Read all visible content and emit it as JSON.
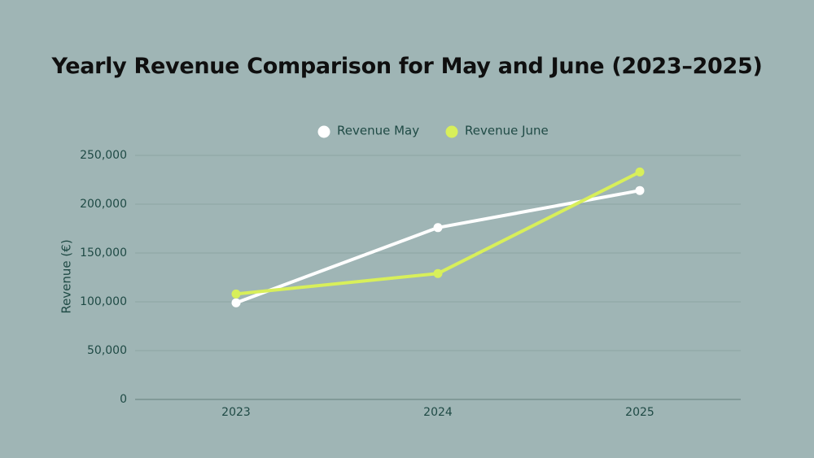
{
  "chart_data": {
    "type": "line",
    "title": "Yearly Revenue Comparison for May and June (2023–2025)",
    "xlabel": "",
    "ylabel": "Revenue (€)",
    "categories": [
      "2023",
      "2024",
      "2025"
    ],
    "ylim": [
      0,
      250000
    ],
    "yticks": [
      "0",
      "50,000",
      "100,000",
      "150,000",
      "200,000",
      "250,000"
    ],
    "ytick_values": [
      0,
      50000,
      100000,
      150000,
      200000,
      250000
    ],
    "grid": true,
    "legend_position": "top-center",
    "series": [
      {
        "name": "Revenue May",
        "color": "#ffffff",
        "values": [
          99000,
          176000,
          214000
        ]
      },
      {
        "name": "Revenue June",
        "color": "#d8ef5a",
        "values": [
          108000,
          129000,
          233000
        ]
      }
    ]
  }
}
